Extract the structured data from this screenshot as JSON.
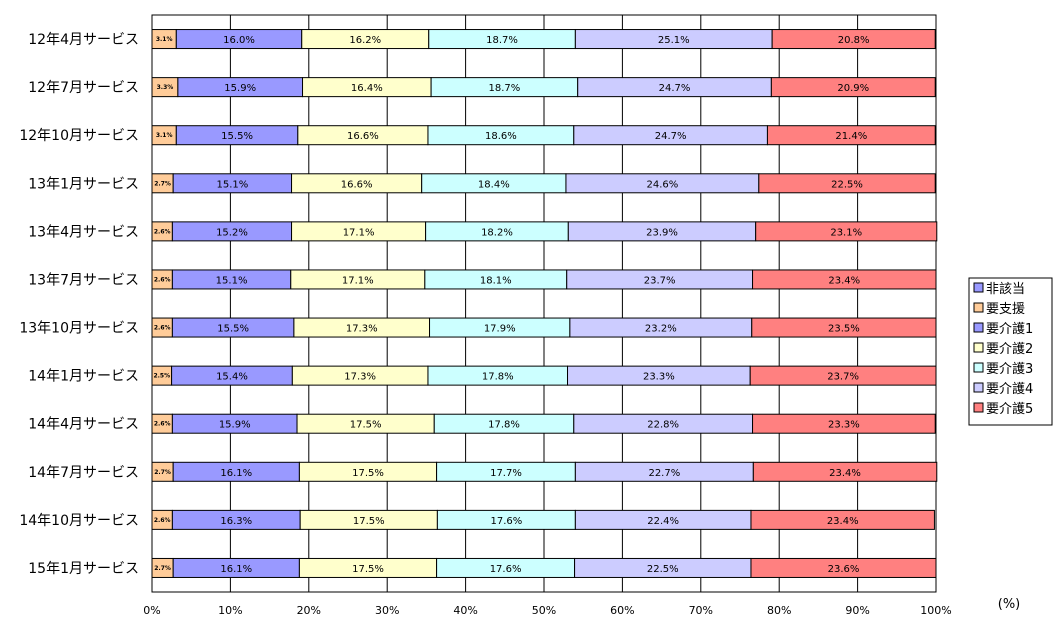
{
  "chart_data": {
    "type": "bar",
    "orientation": "horizontal",
    "stacked": "percent",
    "unit_label": "(%)",
    "xlim": [
      0,
      100
    ],
    "x_ticks": [
      "0%",
      "10%",
      "20%",
      "30%",
      "40%",
      "50%",
      "60%",
      "70%",
      "80%",
      "90%",
      "100%"
    ],
    "grid": true,
    "legend_position": "right",
    "categories": [
      "12年4月サービス",
      "12年7月サービス",
      "12年10月サービス",
      "13年1月サービス",
      "13年4月サービス",
      "13年7月サービス",
      "13年10月サービス",
      "14年1月サービス",
      "14年4月サービス",
      "14年7月サービス",
      "14年10月サービス",
      "15年1月サービス"
    ],
    "series": [
      {
        "name": "非該当",
        "color": "#9999ff",
        "values": [
          0,
          0,
          0,
          0,
          0,
          0,
          0,
          0,
          0,
          0,
          0,
          0
        ],
        "labels": [
          "",
          "",
          "",
          "",
          "",
          "",
          "",
          "",
          "",
          "",
          "",
          ""
        ]
      },
      {
        "name": "要支援",
        "color": "#ffcc99",
        "values": [
          3.1,
          3.3,
          3.1,
          2.7,
          2.6,
          2.6,
          2.6,
          2.5,
          2.6,
          2.7,
          2.6,
          2.7
        ],
        "labels": [
          "3.1%",
          "3.3%",
          "3.1%",
          "2.7%",
          "2.6%",
          "2.6%",
          "2.6%",
          "2.5%",
          "2.6%",
          "2.7%",
          "2.6%",
          "2.7%"
        ]
      },
      {
        "name": "要介護1",
        "color": "#9999ff",
        "values": [
          16.0,
          15.9,
          15.5,
          15.1,
          15.2,
          15.1,
          15.5,
          15.4,
          15.9,
          16.1,
          16.3,
          16.1
        ],
        "labels": [
          "16.0%",
          "15.9%",
          "15.5%",
          "15.1%",
          "15.2%",
          "15.1%",
          "15.5%",
          "15.4%",
          "15.9%",
          "16.1%",
          "16.3%",
          "16.1%"
        ]
      },
      {
        "name": "要介護2",
        "color": "#ffffcc",
        "values": [
          16.2,
          16.4,
          16.6,
          16.6,
          17.1,
          17.1,
          17.3,
          17.3,
          17.5,
          17.5,
          17.5,
          17.5
        ],
        "labels": [
          "16.2%",
          "16.4%",
          "16.6%",
          "16.6%",
          "17.1%",
          "17.1%",
          "17.3%",
          "17.3%",
          "17.5%",
          "17.5%",
          "17.5%",
          "17.5%"
        ]
      },
      {
        "name": "要介護3",
        "color": "#ccffff",
        "values": [
          18.7,
          18.7,
          18.6,
          18.4,
          18.2,
          18.1,
          17.9,
          17.8,
          17.8,
          17.7,
          17.6,
          17.6
        ],
        "labels": [
          "18.7%",
          "18.7%",
          "18.6%",
          "18.4%",
          "18.2%",
          "18.1%",
          "17.9%",
          "17.8%",
          "17.8%",
          "17.7%",
          "17.6%",
          "17.6%"
        ]
      },
      {
        "name": "要介護4",
        "color": "#ccccff",
        "values": [
          25.1,
          24.7,
          24.7,
          24.6,
          23.9,
          23.7,
          23.2,
          23.3,
          22.8,
          22.7,
          22.4,
          22.5
        ],
        "labels": [
          "25.1%",
          "24.7%",
          "24.7%",
          "24.6%",
          "23.9%",
          "23.7%",
          "23.2%",
          "23.3%",
          "22.8%",
          "22.7%",
          "22.4%",
          "22.5%"
        ]
      },
      {
        "name": "要介護5",
        "color": "#ff8080",
        "values": [
          20.8,
          20.9,
          21.4,
          22.5,
          23.1,
          23.4,
          23.5,
          23.7,
          23.3,
          23.4,
          23.4,
          23.6
        ],
        "labels": [
          "20.8%",
          "20.9%",
          "21.4%",
          "22.5%",
          "23.1%",
          "23.4%",
          "23.5%",
          "23.7%",
          "23.3%",
          "23.4%",
          "23.4%",
          "23.6%"
        ]
      }
    ]
  }
}
